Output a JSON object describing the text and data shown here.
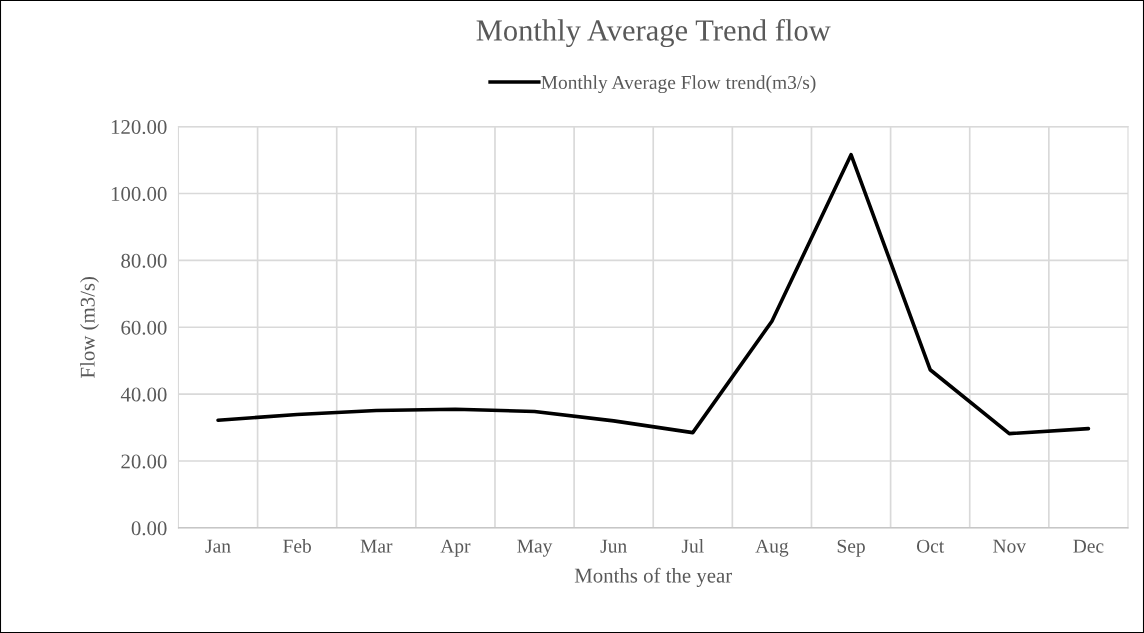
{
  "chart_data": {
    "type": "line",
    "title": "Monthly Average Trend flow",
    "xlabel": "Months of the year",
    "ylabel": "Flow (m3/s)",
    "categories": [
      "Jan",
      "Feb",
      "Mar",
      "Apr",
      "May",
      "Jun",
      "Jul",
      "Aug",
      "Sep",
      "Oct",
      "Nov",
      "Dec"
    ],
    "series": [
      {
        "name": "Monthly Average Flow trend(m3/s)",
        "color": "#000000",
        "values": [
          32.2,
          33.9,
          35.1,
          35.5,
          34.8,
          32.0,
          28.5,
          61.8,
          111.6,
          47.3,
          28.2,
          29.7
        ]
      }
    ],
    "ylim": [
      0,
      120
    ],
    "yticks": [
      {
        "value": 0,
        "label": "0.00"
      },
      {
        "value": 20,
        "label": "20.00"
      },
      {
        "value": 40,
        "label": "40.00"
      },
      {
        "value": 60,
        "label": "60.00"
      },
      {
        "value": 80,
        "label": "80.00"
      },
      {
        "value": 100,
        "label": "100.00"
      },
      {
        "value": 120,
        "label": "120.00"
      }
    ],
    "grid": true,
    "legend": "top",
    "marker": "none",
    "line_style": "solid"
  }
}
